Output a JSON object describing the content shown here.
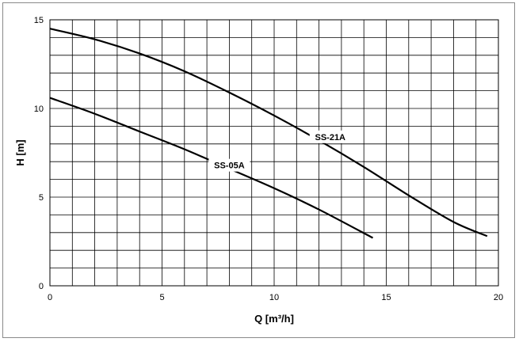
{
  "chart_data": {
    "type": "line",
    "xlabel": "Q [m³/h]",
    "ylabel": "H [m]",
    "xlim": [
      0,
      20
    ],
    "ylim": [
      0,
      15
    ],
    "x_ticks": [
      0,
      5,
      10,
      15,
      20
    ],
    "y_ticks": [
      0,
      5,
      10,
      15
    ],
    "x_minor_step": 1,
    "y_minor_step": 1,
    "grid": true,
    "series": [
      {
        "name": "SS-21A",
        "x": [
          0,
          2,
          4,
          6,
          8,
          10,
          12,
          14,
          16,
          18,
          19.5
        ],
        "y": [
          14.5,
          13.9,
          13.1,
          12.1,
          10.9,
          9.6,
          8.2,
          6.7,
          5.1,
          3.6,
          2.8
        ]
      },
      {
        "name": "SS-05A",
        "x": [
          0,
          2,
          4,
          6,
          8,
          10,
          12,
          14.4
        ],
        "y": [
          10.6,
          9.7,
          8.7,
          7.7,
          6.6,
          5.5,
          4.3,
          2.7
        ]
      }
    ],
    "annotations": [
      {
        "text": "SS-21A",
        "x": 12.5,
        "y": 8.4
      },
      {
        "text": "SS-05A",
        "x": 8.0,
        "y": 6.8
      }
    ]
  }
}
